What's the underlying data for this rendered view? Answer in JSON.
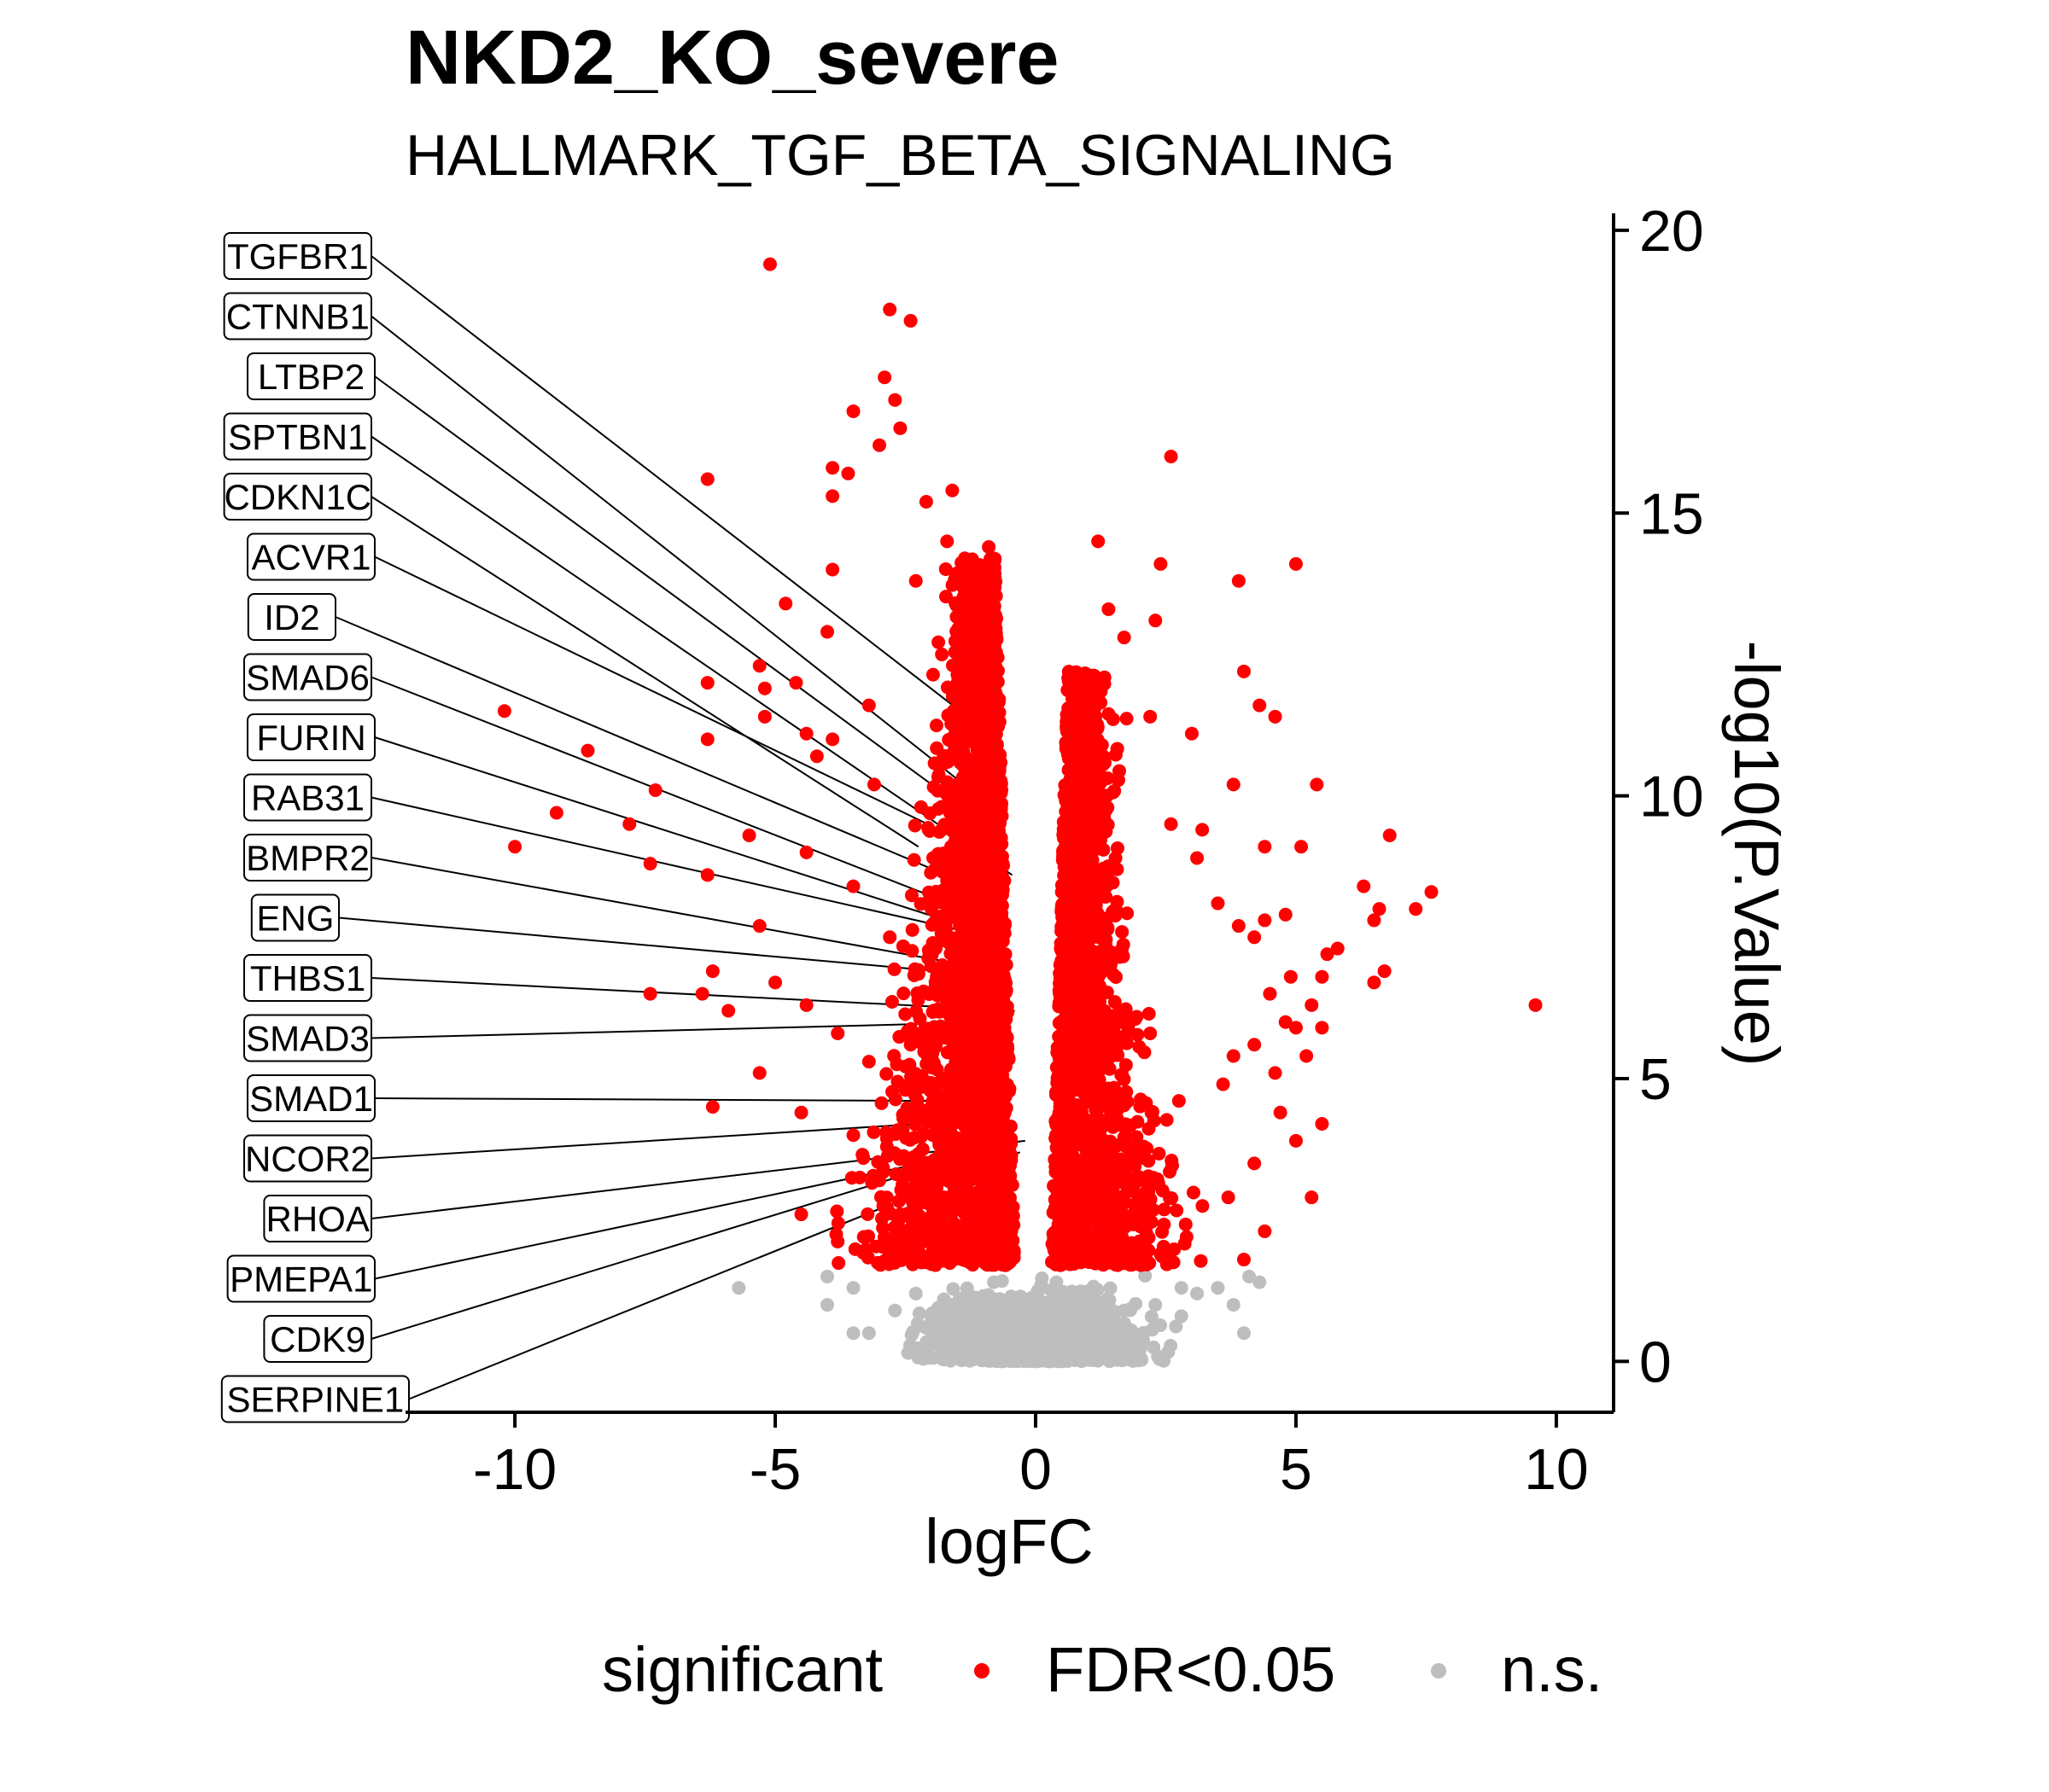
{
  "chart_data": {
    "type": "scatter",
    "title": "NKD2_KO_severe",
    "subtitle": "HALLMARK_TGF_BETA_SIGNALING",
    "xlabel": "logFC",
    "ylabel": "-log10(P.Value)",
    "xlim": [
      -12.1,
      11.1
    ],
    "ylim": [
      -0.9,
      20.3
    ],
    "xticks": [
      -10,
      -5,
      0,
      5,
      10
    ],
    "yticks": [
      0,
      5,
      10,
      15,
      20
    ],
    "xtick_labels": [
      "-10",
      "-5",
      "0",
      "5",
      "10"
    ],
    "ytick_labels": [
      "0",
      "5",
      "10",
      "15",
      "20"
    ],
    "grid": false,
    "legend": {
      "title": "significant",
      "position": "bottom",
      "entries": [
        {
          "label": "FDR<0.05",
          "color": "#ff0000"
        },
        {
          "label": "n.s.",
          "color": "#bebebe"
        }
      ]
    },
    "series": [
      {
        "key": "sig",
        "color": "#ff0000",
        "points": [
          [
            -5.1,
            19.4
          ],
          [
            -2.8,
            18.6
          ],
          [
            -2.4,
            18.4
          ],
          [
            -2.9,
            17.4
          ],
          [
            -2.7,
            17.0
          ],
          [
            -3.5,
            16.8
          ],
          [
            -2.6,
            16.5
          ],
          [
            -3.0,
            16.2
          ],
          [
            -3.9,
            15.8
          ],
          [
            -3.6,
            15.7
          ],
          [
            -6.3,
            15.6
          ],
          [
            -1.6,
            15.4
          ],
          [
            -3.9,
            15.3
          ],
          [
            -2.1,
            15.2
          ],
          [
            -0.9,
            14.4
          ],
          [
            -1.4,
            14.0
          ],
          [
            -3.9,
            14.0
          ],
          [
            -1.4,
            13.9
          ],
          [
            -4.8,
            13.4
          ],
          [
            -4.0,
            12.9
          ],
          [
            -5.3,
            12.3
          ],
          [
            -6.3,
            12.0
          ],
          [
            -5.2,
            11.9
          ],
          [
            -4.6,
            12.0
          ],
          [
            -3.2,
            11.6
          ],
          [
            -5.2,
            11.4
          ],
          [
            -10.2,
            11.5
          ],
          [
            -8.6,
            10.8
          ],
          [
            -6.3,
            11.0
          ],
          [
            -4.4,
            11.1
          ],
          [
            -3.9,
            11.0
          ],
          [
            -4.2,
            10.7
          ],
          [
            -7.3,
            10.1
          ],
          [
            -9.2,
            9.7
          ],
          [
            -7.8,
            9.5
          ],
          [
            -5.5,
            9.3
          ],
          [
            -4.4,
            9.0
          ],
          [
            -10.0,
            9.1
          ],
          [
            -7.4,
            8.8
          ],
          [
            -6.3,
            8.6
          ],
          [
            -3.5,
            8.4
          ],
          [
            -5.3,
            7.7
          ],
          [
            -6.2,
            6.9
          ],
          [
            -5.0,
            6.7
          ],
          [
            -7.4,
            6.5
          ],
          [
            -6.4,
            6.5
          ],
          [
            -5.9,
            6.2
          ],
          [
            -5.3,
            5.1
          ],
          [
            -6.2,
            4.5
          ],
          [
            -4.5,
            4.4
          ],
          [
            -3.5,
            4.0
          ],
          [
            -4.5,
            2.6
          ],
          [
            -3.2,
            5.3
          ],
          [
            -2.8,
            7.5
          ],
          [
            -3.8,
            5.8
          ],
          [
            -4.4,
            6.3
          ],
          [
            -2.5,
            4.8
          ],
          [
            -3.0,
            3.2
          ],
          [
            -2.2,
            9.8
          ],
          [
            -1.8,
            12.5
          ],
          [
            -1.2,
            13.5
          ],
          [
            -1.6,
            11.0
          ],
          [
            -1.0,
            9.0
          ],
          [
            -2.0,
            8.0
          ],
          [
            -1.3,
            7.2
          ],
          [
            -0.8,
            6.0
          ],
          [
            -1.5,
            5.0
          ],
          [
            -0.9,
            4.0
          ],
          [
            -1.9,
            3.5
          ],
          [
            -2.6,
            2.6
          ],
          [
            -1.1,
            2.4
          ],
          [
            -0.7,
            3.0
          ],
          [
            -0.6,
            8.5
          ],
          [
            -1.7,
            14.5
          ],
          [
            -2.3,
            13.8
          ],
          [
            -3.1,
            10.2
          ],
          [
            -1.9,
            6.8
          ],
          [
            -2.4,
            5.6
          ],
          [
            -0.7,
            2.0
          ],
          [
            -1.4,
            1.8
          ],
          [
            -2.2,
            2.1
          ],
          [
            -3.3,
            2.2
          ],
          [
            -1.0,
            10.6
          ],
          [
            -1.3,
            12.2
          ],
          [
            -0.8,
            11.8
          ],
          [
            2.6,
            16.0
          ],
          [
            1.2,
            14.5
          ],
          [
            2.4,
            14.1
          ],
          [
            5.0,
            14.1
          ],
          [
            3.9,
            13.8
          ],
          [
            1.4,
            13.3
          ],
          [
            2.3,
            13.1
          ],
          [
            1.7,
            12.8
          ],
          [
            4.0,
            12.2
          ],
          [
            1.0,
            12.1
          ],
          [
            4.3,
            11.6
          ],
          [
            4.6,
            11.4
          ],
          [
            3.0,
            11.1
          ],
          [
            2.2,
            11.4
          ],
          [
            3.8,
            10.2
          ],
          [
            5.4,
            10.2
          ],
          [
            6.8,
            9.3
          ],
          [
            2.6,
            9.5
          ],
          [
            3.2,
            9.4
          ],
          [
            4.4,
            9.1
          ],
          [
            5.1,
            9.1
          ],
          [
            3.1,
            8.9
          ],
          [
            6.3,
            8.4
          ],
          [
            7.6,
            8.3
          ],
          [
            7.3,
            8.0
          ],
          [
            6.6,
            8.0
          ],
          [
            6.5,
            7.8
          ],
          [
            3.5,
            8.1
          ],
          [
            4.8,
            7.9
          ],
          [
            4.4,
            7.8
          ],
          [
            3.9,
            7.7
          ],
          [
            4.2,
            7.5
          ],
          [
            5.8,
            7.3
          ],
          [
            5.6,
            7.2
          ],
          [
            6.7,
            6.9
          ],
          [
            6.5,
            6.7
          ],
          [
            5.5,
            6.8
          ],
          [
            4.9,
            6.8
          ],
          [
            4.5,
            6.5
          ],
          [
            5.3,
            6.3
          ],
          [
            9.6,
            6.3
          ],
          [
            4.8,
            6.0
          ],
          [
            5.0,
            5.9
          ],
          [
            5.5,
            5.9
          ],
          [
            4.2,
            5.6
          ],
          [
            3.8,
            5.4
          ],
          [
            5.2,
            5.4
          ],
          [
            4.6,
            5.1
          ],
          [
            3.6,
            4.9
          ],
          [
            4.7,
            4.4
          ],
          [
            5.5,
            4.2
          ],
          [
            5.0,
            3.9
          ],
          [
            4.2,
            3.5
          ],
          [
            5.3,
            2.9
          ],
          [
            3.7,
            2.9
          ],
          [
            4.4,
            2.3
          ],
          [
            4.0,
            1.8
          ],
          [
            2.9,
            2.2
          ],
          [
            1.8,
            3.6
          ],
          [
            2.2,
            5.8
          ],
          [
            1.4,
            7.0
          ],
          [
            1.1,
            9.8
          ],
          [
            0.7,
            8.0
          ],
          [
            0.9,
            4.8
          ],
          [
            0.6,
            3.2
          ],
          [
            1.6,
            2.4
          ],
          [
            0.8,
            2.0
          ],
          [
            2.4,
            1.9
          ],
          [
            1.3,
            10.7
          ],
          [
            0.8,
            6.0
          ]
        ]
      },
      {
        "key": "ns",
        "color": "#bebebe",
        "points": [
          [
            -5.7,
            1.3
          ],
          [
            -4.0,
            1.5
          ],
          [
            -4.0,
            1.0
          ],
          [
            -3.5,
            1.3
          ],
          [
            -3.5,
            0.5
          ],
          [
            -3.2,
            0.5
          ],
          [
            -2.7,
            0.9
          ],
          [
            -2.3,
            1.2
          ],
          [
            -1.8,
            0.6
          ],
          [
            -1.4,
            1.1
          ],
          [
            -1.0,
            0.3
          ],
          [
            -0.6,
            0.8
          ],
          [
            -0.3,
            0.2
          ],
          [
            0.2,
            0.1
          ],
          [
            0.5,
            0.6
          ],
          [
            0.9,
            1.2
          ],
          [
            1.3,
            0.4
          ],
          [
            1.7,
            0.9
          ],
          [
            2.0,
            0.3
          ],
          [
            2.3,
            1.0
          ],
          [
            2.8,
            1.3
          ],
          [
            2.8,
            0.8
          ],
          [
            3.1,
            1.2
          ],
          [
            3.5,
            1.3
          ],
          [
            3.8,
            1.0
          ],
          [
            4.1,
            1.5
          ],
          [
            4.3,
            1.4
          ],
          [
            4.0,
            0.5
          ],
          [
            -2.0,
            0.4
          ],
          [
            -0.8,
            1.4
          ],
          [
            0.4,
            1.4
          ],
          [
            1.0,
            0.1
          ],
          [
            -0.2,
            0.7
          ],
          [
            0.0,
            0.0
          ],
          [
            1.9,
            0.2
          ]
        ]
      }
    ],
    "gene_labels": [
      {
        "gene": "TGFBR1",
        "x": -1.45,
        "y": 11.5
      },
      {
        "gene": "CTNNB1",
        "x": -0.55,
        "y": 9.6
      },
      {
        "gene": "LTBP2",
        "x": -1.55,
        "y": 9.9
      },
      {
        "gene": "SPTBN1",
        "x": -0.45,
        "y": 8.6
      },
      {
        "gene": "CDKN1C",
        "x": -2.25,
        "y": 9.1
      },
      {
        "gene": "ACVR1",
        "x": -1.85,
        "y": 9.4
      },
      {
        "gene": "ID2",
        "x": -1.2,
        "y": 8.4
      },
      {
        "gene": "SMAD6",
        "x": -1.65,
        "y": 8.1
      },
      {
        "gene": "FURIN",
        "x": -1.05,
        "y": 7.6
      },
      {
        "gene": "RAB31",
        "x": -0.85,
        "y": 7.5
      },
      {
        "gene": "BMPR2",
        "x": -0.7,
        "y": 6.9
      },
      {
        "gene": "ENG",
        "x": -0.65,
        "y": 6.8
      },
      {
        "gene": "THBS1",
        "x": -0.4,
        "y": 6.2
      },
      {
        "gene": "SMAD3",
        "x": -0.75,
        "y": 6.0
      },
      {
        "gene": "SMAD1",
        "x": -0.55,
        "y": 4.6
      },
      {
        "gene": "NCOR2",
        "x": -0.5,
        "y": 4.3
      },
      {
        "gene": "RHOA",
        "x": -0.2,
        "y": 3.9
      },
      {
        "gene": "PMEPA1",
        "x": -2.2,
        "y": 3.5
      },
      {
        "gene": "CDK9",
        "x": -2.5,
        "y": 3.3
      },
      {
        "gene": "SERPINE1",
        "x": -0.3,
        "y": 3.7
      }
    ]
  }
}
